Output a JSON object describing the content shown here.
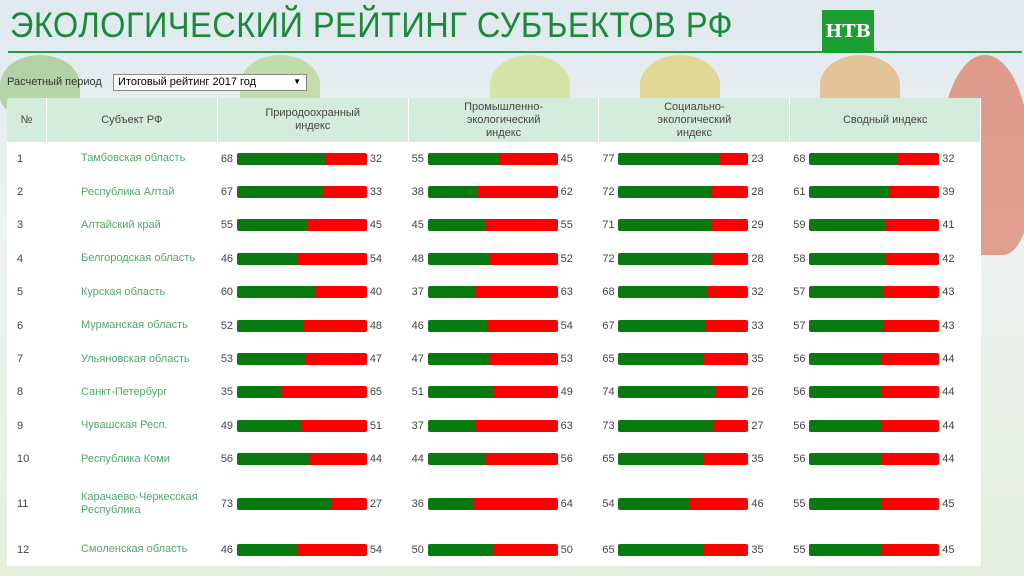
{
  "header": {
    "title": "ЭКОЛОГИЧЕСКИЙ РЕЙТИНГ СУБЪЕКТОВ РФ",
    "logo_text": "НТВ"
  },
  "period": {
    "label": "Расчетный период",
    "selected": "Итоговый рейтинг 2017 год"
  },
  "colors": {
    "good": "#0a7a10",
    "bad": "#ff0000",
    "header_bg": "#d4ecdb",
    "accent": "#1a8a3a"
  },
  "columns": [
    "№",
    "Субъект РФ",
    "Природоохранный индекс",
    "Промышленно-экологический индекс",
    "Социально-экологический индекс",
    "Сводный индекс"
  ],
  "rows": [
    {
      "n": "1",
      "name": "Тамбовская область",
      "v": [
        68,
        55,
        77,
        68
      ]
    },
    {
      "n": "2",
      "name": "Республика Алтай",
      "v": [
        67,
        38,
        72,
        61
      ]
    },
    {
      "n": "3",
      "name": "Алтайский край",
      "v": [
        55,
        45,
        71,
        59
      ]
    },
    {
      "n": "4",
      "name": "Белгородская область",
      "v": [
        46,
        48,
        72,
        58
      ]
    },
    {
      "n": "5",
      "name": "Курская область",
      "v": [
        60,
        37,
        68,
        57
      ]
    },
    {
      "n": "6",
      "name": "Мурманская область",
      "v": [
        52,
        46,
        67,
        57
      ]
    },
    {
      "n": "7",
      "name": "Ульяновская область",
      "v": [
        53,
        47,
        65,
        56
      ]
    },
    {
      "n": "8",
      "name": "Санкт-Петербург",
      "v": [
        35,
        51,
        74,
        56
      ]
    },
    {
      "n": "9",
      "name": "Чувашская Респ.",
      "v": [
        49,
        37,
        73,
        56
      ]
    },
    {
      "n": "10",
      "name": "Республика Коми",
      "v": [
        56,
        44,
        65,
        56
      ]
    },
    {
      "n": "11",
      "name": "Карачаево-Черкесская Республика",
      "v": [
        73,
        36,
        54,
        55
      ]
    },
    {
      "n": "12",
      "name": "Смоленская область",
      "v": [
        46,
        50,
        65,
        55
      ]
    }
  ]
}
